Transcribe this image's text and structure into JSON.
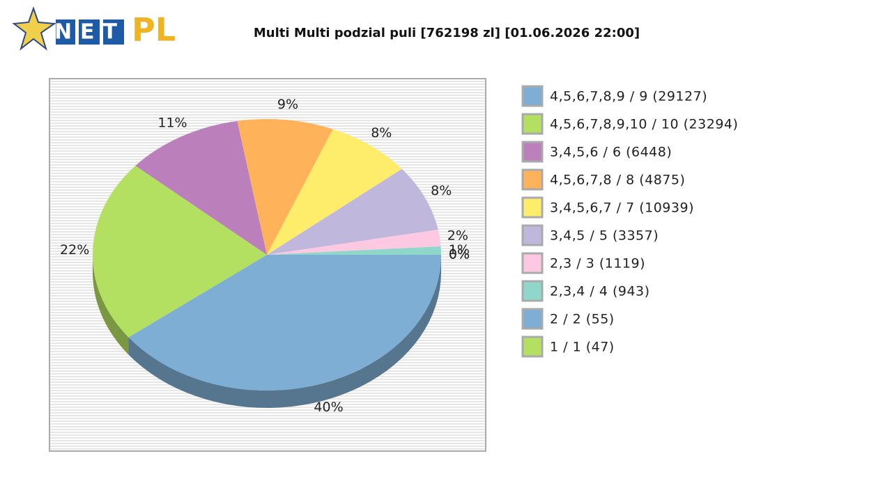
{
  "logo": {
    "brand": "NET",
    "suffix": "PL"
  },
  "chart_data": {
    "type": "pie",
    "title": "Multi Multi podzial puli [762198 zl] [01.06.2026 22:00]",
    "categories": [
      "4,5,6,7,8,9 / 9 (29127)",
      "4,5,6,7,8,9,10 / 10 (23294)",
      "3,4,5,6 / 6 (6448)",
      "4,5,6,7,8 / 8 (4875)",
      "3,4,5,6,7 / 7 (10939)",
      "3,4,5 / 5 (3357)",
      "2,3 / 3 (1119)",
      "2,3,4 / 4 (943)",
      "2 / 2 (55)",
      "1 / 1 (47)"
    ],
    "values": [
      40,
      22,
      11,
      9,
      8,
      8,
      2,
      1,
      0,
      0
    ],
    "value_labels": [
      "40%",
      "22%",
      "11%",
      "9%",
      "8%",
      "8%",
      "2%",
      "1%",
      "0%",
      "0%"
    ],
    "colors": [
      "#7eaed4",
      "#b3e060",
      "#bb7fbc",
      "#feb35a",
      "#feed6a",
      "#bfb8dc",
      "#fdc9e2",
      "#8fd7cb",
      "#7eaed4",
      "#b3e060"
    ],
    "legend": "right"
  }
}
